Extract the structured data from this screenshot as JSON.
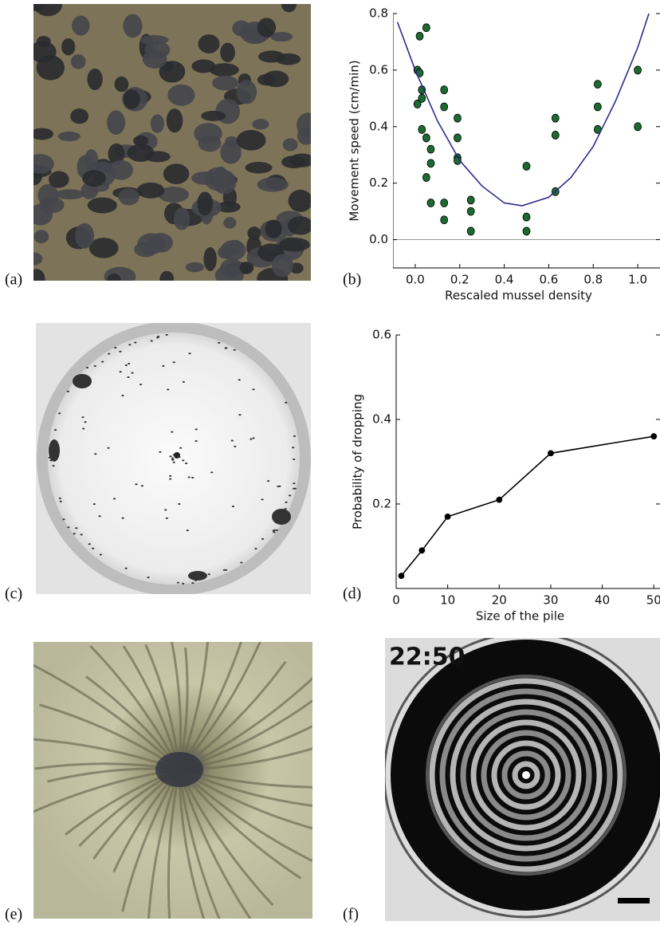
{
  "panel_labels": [
    "(a)",
    "(b)",
    "(c)",
    "(d)",
    "(e)",
    "(f)"
  ],
  "photo_text": "22:50",
  "chart_data": [
    {
      "type": "scatter",
      "x_label": "Rescaled mussel density",
      "y_label": "Movement speed (cm/min)",
      "xlim": [
        -0.1,
        1.1
      ],
      "ylim": [
        -0.1,
        0.8
      ],
      "xticks": [
        {
          "value": 0,
          "label": "0.0"
        },
        0.2,
        0.4,
        0.6,
        0.8,
        {
          "value": 1,
          "label": "1.0"
        }
      ],
      "yticks": [
        {
          "value": 0,
          "label": "0.0"
        },
        0.2,
        0.4,
        0.6,
        0.8
      ],
      "zero_line": true,
      "series": [
        {
          "color": "#1b6b30",
          "style": "markers",
          "x": [
            0.01,
            0.02,
            0.05,
            0.01,
            0.02,
            0.03,
            0.03,
            0.03,
            0.05,
            0.07,
            0.07,
            0.05,
            0.07,
            0.13,
            0.13,
            0.13,
            0.13,
            0.19,
            0.19,
            0.19,
            0.19,
            0.25,
            0.25,
            0.25,
            0.5,
            0.5,
            0.5,
            0.63,
            0.63,
            0.63,
            0.82,
            0.82,
            0.82,
            1.0,
            1.0
          ],
          "values": [
            0.48,
            0.72,
            0.75,
            0.6,
            0.59,
            0.53,
            0.5,
            0.39,
            0.36,
            0.32,
            0.27,
            0.22,
            0.13,
            0.53,
            0.47,
            0.13,
            0.07,
            0.43,
            0.36,
            0.29,
            0.28,
            0.14,
            0.1,
            0.03,
            0.26,
            0.08,
            0.03,
            0.43,
            0.37,
            0.17,
            0.55,
            0.47,
            0.39,
            0.6,
            0.4
          ]
        },
        {
          "color": "#2b2b8c",
          "style": "line",
          "x": [
            -0.08,
            0,
            0.1,
            0.2,
            0.3,
            0.4,
            0.48,
            0.6,
            0.7,
            0.8,
            0.9,
            1.0,
            1.05
          ],
          "values": [
            0.77,
            0.6,
            0.42,
            0.28,
            0.19,
            0.13,
            0.12,
            0.15,
            0.22,
            0.33,
            0.49,
            0.68,
            0.8
          ]
        }
      ]
    },
    {
      "type": "line",
      "x_label": "Size of the pile",
      "y_label": "Probability of dropping",
      "xlim": [
        0,
        51.2
      ],
      "ylim": [
        0,
        0.6
      ],
      "xticks": [
        0,
        10,
        20,
        30,
        40,
        50
      ],
      "yticks": [
        0.2,
        0.4,
        0.6
      ],
      "zero_line": false,
      "series": [
        {
          "color": "#000000",
          "style": "line-markers",
          "x": [
            1,
            5,
            10,
            20,
            30,
            50
          ],
          "values": [
            0.03,
            0.09,
            0.17,
            0.21,
            0.32,
            0.36
          ]
        }
      ]
    }
  ]
}
